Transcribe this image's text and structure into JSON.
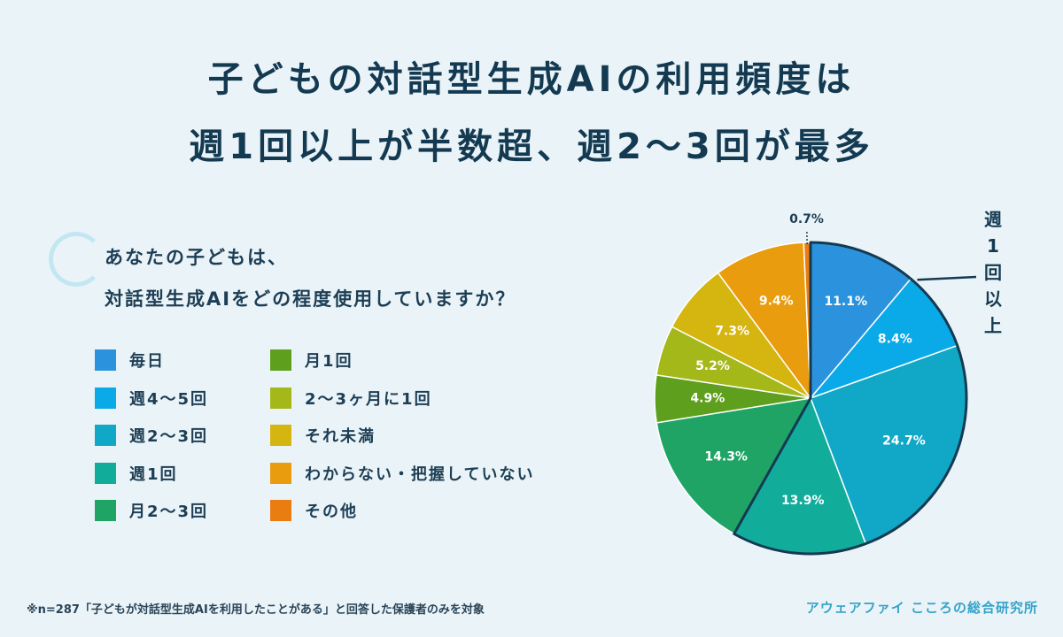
{
  "title": {
    "line1": "子どもの対話型生成AIの利用頻度は",
    "line2": "週1回以上が半数超、週2〜3回が最多"
  },
  "question": {
    "line1": "あなたの子どもは、",
    "line2": "対話型生成AIをどの程度使用していますか？"
  },
  "footnote": "※n=287「子どもが対話型生成AIを利用したことがある」と回答した保護者のみを対象",
  "brand": "アウェアファイ こころの総合研究所",
  "colors": {
    "background": "#eaf4f8",
    "title": "#143a52",
    "brand": "#35a3c9",
    "highlight_outline": "#143a52"
  },
  "chart_data": {
    "type": "pie",
    "start": "12 o'clock, clockwise",
    "slices": [
      {
        "label": "毎日",
        "value": 11.1,
        "display": "11.1%",
        "color": "#2b93dd"
      },
      {
        "label": "週4〜5回",
        "value": 8.4,
        "display": "8.4%",
        "color": "#0aa9e8"
      },
      {
        "label": "週2〜3回",
        "value": 24.7,
        "display": "24.7%",
        "color": "#10a8c6"
      },
      {
        "label": "週1回",
        "value": 13.9,
        "display": "13.9%",
        "color": "#12ac9b"
      },
      {
        "label": "月2〜3回",
        "value": 14.3,
        "display": "14.3%",
        "color": "#20a466"
      },
      {
        "label": "月1回",
        "value": 4.9,
        "display": "4.9%",
        "color": "#5e9f1d"
      },
      {
        "label": "2〜3ヶ月に1回",
        "value": 5.2,
        "display": "5.2%",
        "color": "#a4b81a"
      },
      {
        "label": "それ未満",
        "value": 7.3,
        "display": "7.3%",
        "color": "#d5b50f"
      },
      {
        "label": "わからない・把握していない",
        "value": 9.4,
        "display": "9.4%",
        "color": "#e99c0e"
      },
      {
        "label": "その他",
        "value": 0.7,
        "display": "0.7%",
        "color": "#ea7d12"
      }
    ],
    "highlight": {
      "label": "週1回以上",
      "slices": [
        "毎日",
        "週4〜5回",
        "週2〜3回",
        "週1回"
      ]
    },
    "legend": {
      "columns": [
        [
          "毎日",
          "週4〜5回",
          "週2〜3回",
          "週1回",
          "月2〜3回"
        ],
        [
          "月1回",
          "2〜3ヶ月に1回",
          "それ未満",
          "わからない・把握していない",
          "その他"
        ]
      ]
    }
  }
}
